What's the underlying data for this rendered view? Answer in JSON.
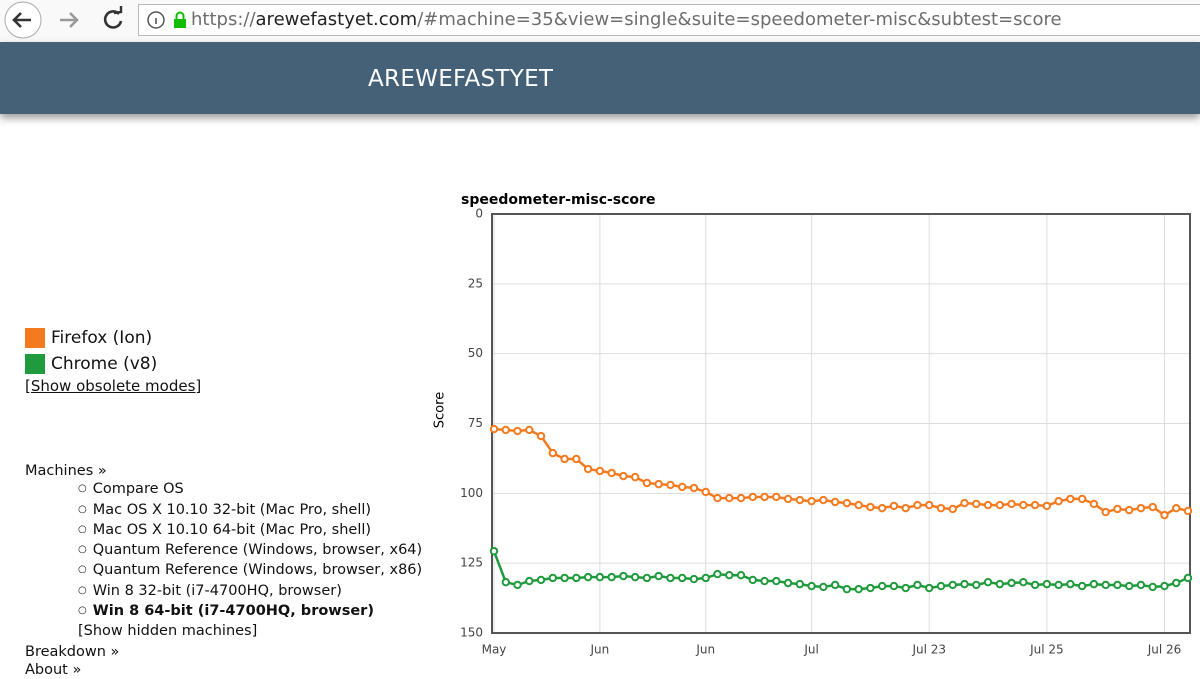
{
  "browser": {
    "url_parts": [
      "https://",
      "arewefastyet.com",
      "/#machine=35&view=single&suite=speedometer-misc&subtest=score"
    ]
  },
  "header": {
    "title": "AREWEFASTYET"
  },
  "sidebar": {
    "show_obsolete": "[Show obsolete modes]",
    "machines_heading": "Machines »",
    "machines": [
      "Compare OS",
      "Mac OS X 10.10 32-bit (Mac Pro, shell)",
      "Mac OS X 10.10 64-bit (Mac Pro, shell)",
      "Quantum Reference (Windows, browser, x64)",
      "Quantum Reference (Windows, browser, x86)",
      "Win 8 32-bit (i7-4700HQ, browser)",
      "Win 8 64-bit (i7-4700HQ, browser)"
    ],
    "selected_machine": 6,
    "show_hidden": "[Show hidden machines]",
    "links": [
      "Breakdown »",
      "About »"
    ]
  },
  "chart_data": {
    "type": "line",
    "title": "speedometer-misc-score",
    "y_label": "Score",
    "categories": [
      "May",
      null,
      null,
      null,
      null,
      null,
      null,
      null,
      null,
      "Jun",
      null,
      null,
      null,
      null,
      null,
      null,
      null,
      null,
      "Jun",
      null,
      null,
      null,
      null,
      null,
      null,
      null,
      null,
      "Jul",
      null,
      null,
      null,
      null,
      null,
      null,
      null,
      null,
      null,
      "Jul 23",
      null,
      null,
      null,
      null,
      null,
      null,
      null,
      null,
      null,
      "Jul 25",
      null,
      null,
      null,
      null,
      null,
      null,
      null,
      null,
      null,
      "Jul 26",
      null,
      null
    ],
    "ylim": [
      0,
      150
    ],
    "yticks": [
      0,
      25,
      50,
      75,
      100,
      125,
      150
    ],
    "y_inverted": true,
    "grid": true,
    "series": [
      {
        "name": "Firefox (Ion)",
        "color": "#f47a20",
        "values": [
          77,
          77.3,
          77.7,
          77.3,
          79.5,
          85.6,
          87.7,
          87.7,
          91.3,
          92,
          92.7,
          93.8,
          94.2,
          96.3,
          96.7,
          97,
          97.7,
          98.1,
          99.5,
          101.7,
          101.7,
          101.7,
          101.3,
          101.3,
          101.3,
          102,
          102.4,
          102.8,
          102.4,
          103.1,
          103.5,
          104.2,
          104.9,
          105.3,
          104.5,
          105.3,
          104.2,
          104.2,
          105.3,
          105.6,
          103.5,
          103.8,
          104.2,
          104.2,
          103.8,
          104.2,
          104.2,
          104.5,
          102.8,
          102,
          102,
          103.8,
          106.7,
          105.6,
          106,
          105.3,
          104.9,
          107.8,
          105.3,
          106.3
        ]
      },
      {
        "name": "Chrome (v8)",
        "color": "#1f9a3c",
        "values": [
          120.7,
          131.8,
          132.8,
          131.4,
          131,
          130.3,
          130.3,
          130.3,
          130,
          130,
          130,
          129.6,
          130,
          130.3,
          129.6,
          130.3,
          130.3,
          130.7,
          130.3,
          128.9,
          129.3,
          129.3,
          131,
          131.4,
          131.4,
          132.1,
          132.5,
          133.2,
          133.5,
          132.8,
          134.3,
          134.3,
          133.9,
          133.2,
          133.2,
          133.9,
          132.8,
          133.9,
          133.2,
          132.8,
          132.5,
          132.8,
          131.8,
          132.5,
          132.1,
          131.8,
          132.8,
          132.5,
          132.8,
          132.5,
          133.2,
          132.5,
          132.8,
          132.8,
          133.2,
          132.8,
          133.5,
          133.2,
          132.1,
          130.3
        ]
      }
    ]
  }
}
